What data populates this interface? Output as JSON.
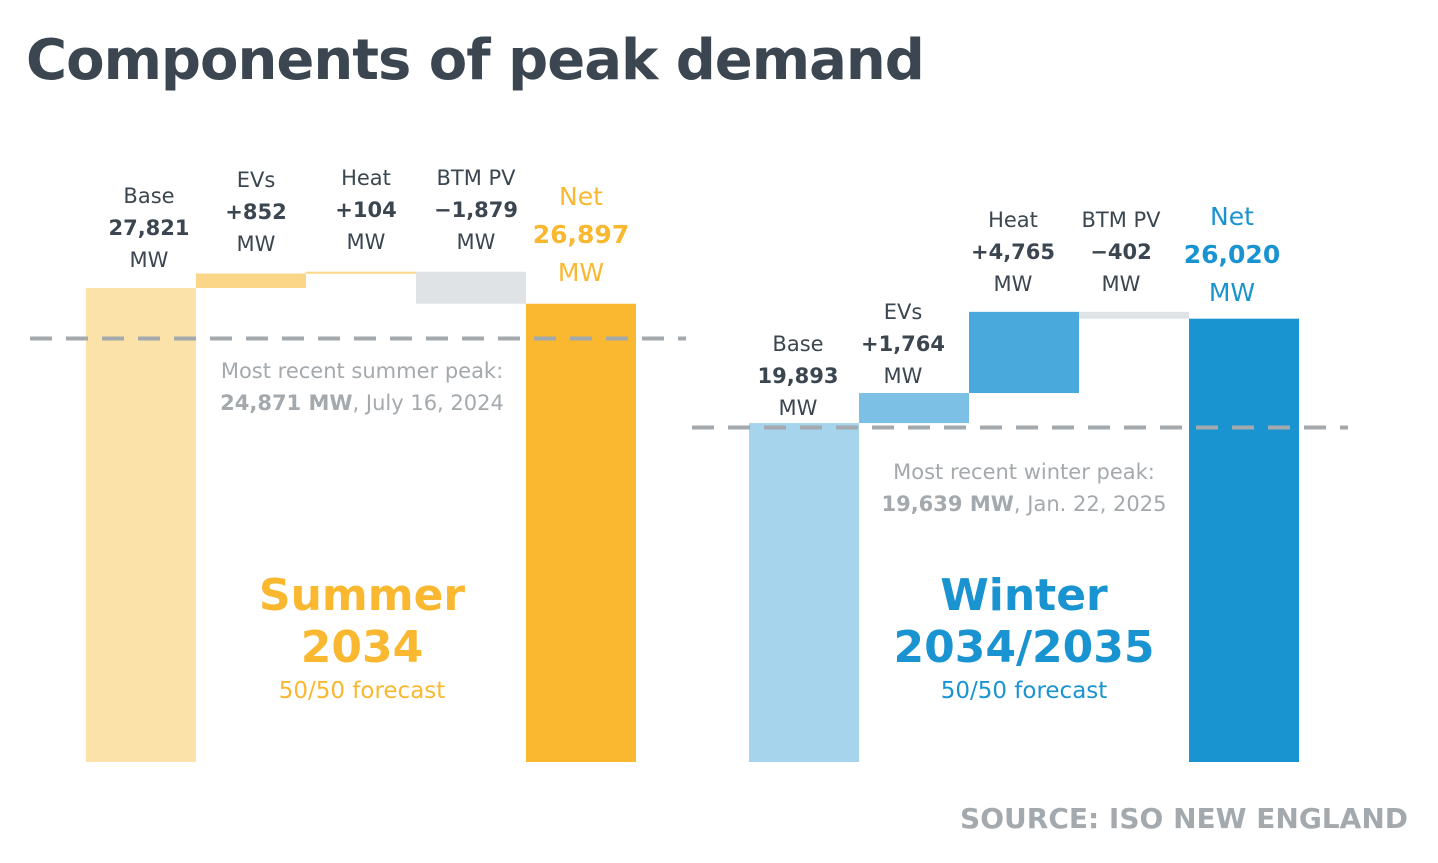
{
  "title": "Components of peak demand",
  "source": "SOURCE: ISO NEW ENGLAND",
  "colors": {
    "summer_light": "#fbe2a8",
    "summer_mid": "#fcd688",
    "summer_dark": "#f9b82f",
    "winter_light": "#a6d4ed",
    "winter_mid": "#7cc0e6",
    "winter_step": "#4aa9dc",
    "winter_dark": "#1a93d1",
    "pv": "#dfe3e6",
    "peak_line": "#a3a9ad",
    "text": "#3b4650",
    "muted": "#a3a9ad"
  },
  "summer": {
    "season": "Summer",
    "year": "2034",
    "forecast": "50/50 forecast",
    "peak_text": "Most recent summer peak:",
    "peak_value": "24,871 MW",
    "peak_date": ", July 16, 2024",
    "labels": [
      {
        "name": "Base",
        "value": "27,821",
        "unit": "MW"
      },
      {
        "name": "EVs",
        "value": "+852",
        "unit": "MW"
      },
      {
        "name": "Heat",
        "value": "+104",
        "unit": "MW"
      },
      {
        "name": "BTM PV",
        "value": "−1,879",
        "unit": "MW"
      },
      {
        "name": "Net",
        "value": "26,897",
        "unit": "MW"
      }
    ]
  },
  "winter": {
    "season": "Winter",
    "year": "2034/2035",
    "forecast": "50/50 forecast",
    "peak_text": "Most recent winter peak:",
    "peak_value": "19,639 MW",
    "peak_date": ", Jan. 22, 2025",
    "labels": [
      {
        "name": "Base",
        "value": "19,893",
        "unit": "MW"
      },
      {
        "name": "EVs",
        "value": "+1,764",
        "unit": "MW"
      },
      {
        "name": "Heat",
        "value": "+4,765",
        "unit": "MW"
      },
      {
        "name": "BTM PV",
        "value": "−402",
        "unit": "MW"
      },
      {
        "name": "Net",
        "value": "26,020",
        "unit": "MW"
      }
    ]
  },
  "chart_data": [
    {
      "type": "bar",
      "title": "Summer 2034",
      "categories": [
        "Base",
        "EVs",
        "Heat",
        "BTM PV",
        "Net"
      ],
      "values": [
        27821,
        852,
        104,
        -1879,
        26897
      ],
      "unit": "MW",
      "reference_line": {
        "label": "Most recent summer peak",
        "value": 24871,
        "date": "July 16, 2024"
      }
    },
    {
      "type": "bar",
      "title": "Winter 2034/2035",
      "categories": [
        "Base",
        "EVs",
        "Heat",
        "BTM PV",
        "Net"
      ],
      "values": [
        19893,
        1764,
        4765,
        -402,
        26020
      ],
      "unit": "MW",
      "reference_line": {
        "label": "Most recent winter peak",
        "value": 19639,
        "date": "Jan. 22, 2025"
      }
    }
  ]
}
